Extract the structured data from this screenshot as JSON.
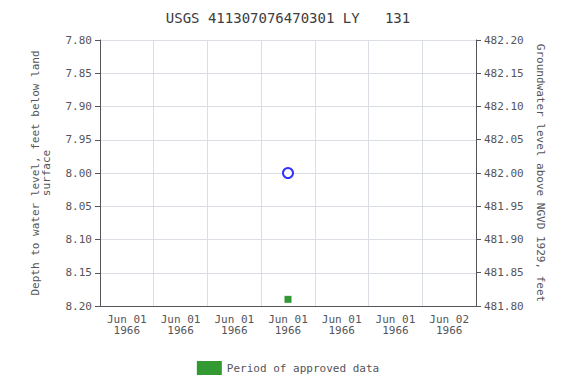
{
  "chart_data": {
    "type": "scatter",
    "title": "USGS 411307076470301 LY   131",
    "y_label": "Depth to water level, feet below land\nsurface",
    "y2_label": "Groundwater level above NGVD 1929, feet",
    "categories": [
      "Jun 01\n1966",
      "Jun 01\n1966",
      "Jun 01\n1966",
      "Jun 01\n1966",
      "Jun 01\n1966",
      "Jun 01\n1966",
      "Jun 02\n1966"
    ],
    "ylim": [
      8.2,
      7.8
    ],
    "yticks": [
      {
        "value": 7.8,
        "label": "7.80"
      },
      7.85,
      {
        "value": 7.9,
        "label": "7.90"
      },
      7.95,
      {
        "value": 8.0,
        "label": "8.00"
      },
      8.05,
      {
        "value": 8.1,
        "label": "8.10"
      },
      8.15,
      {
        "value": 8.2,
        "label": "8.20"
      }
    ],
    "y2lim": [
      481.8,
      482.2
    ],
    "y2ticks": [
      {
        "value": 482.2,
        "label": "482.20"
      },
      482.15,
      {
        "value": 482.1,
        "label": "482.10"
      },
      482.05,
      {
        "value": 482.0,
        "label": "482.00"
      },
      481.95,
      {
        "value": 481.9,
        "label": "481.90"
      },
      481.85,
      {
        "value": 481.8,
        "label": "481.80"
      }
    ],
    "grid": true,
    "legend": "bottom",
    "series": [
      {
        "color": "#0000ff",
        "marker": "open_circle",
        "values": [
          null,
          null,
          null,
          8.0,
          null,
          null,
          null
        ]
      },
      {
        "name": "Period of approved data",
        "color": "#008000",
        "marker": "square",
        "values": [
          null,
          null,
          null,
          8.19,
          null,
          null,
          null
        ]
      }
    ]
  }
}
